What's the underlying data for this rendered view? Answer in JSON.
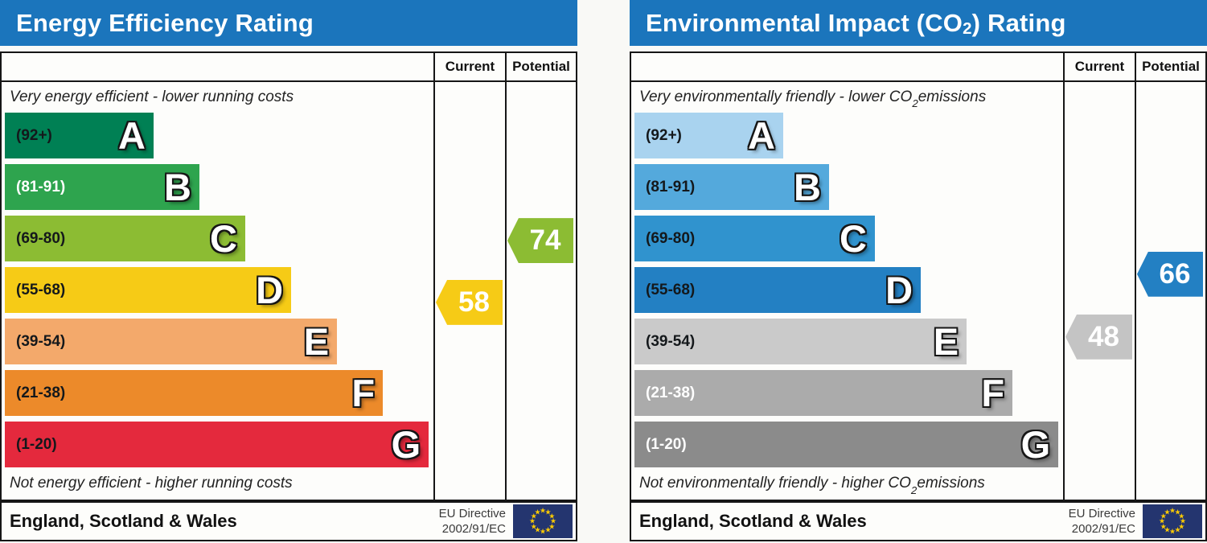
{
  "chart_data": [
    {
      "type": "bar",
      "orientation": "horizontal",
      "title_prefix": "Energy Efficiency Rating",
      "title_sub": "",
      "title_suffix": "",
      "header_color": "#1b75bc",
      "column_headers": {
        "current": "Current",
        "potential": "Potential"
      },
      "top_note_prefix": "Very energy efficient - lower running costs",
      "top_note_sub": "",
      "top_note_suffix": "",
      "bottom_note_prefix": "Not energy efficient - higher running costs",
      "bottom_note_sub": "",
      "bottom_note_suffix": "",
      "categories": [
        "A",
        "B",
        "C",
        "D",
        "E",
        "F",
        "G"
      ],
      "range_labels": [
        "(92+)",
        "(81-91)",
        "(69-80)",
        "(55-68)",
        "(39-54)",
        "(21-38)",
        "(1-20)"
      ],
      "band_bounds": [
        [
          92,
          100
        ],
        [
          81,
          91
        ],
        [
          69,
          80
        ],
        [
          55,
          68
        ],
        [
          39,
          54
        ],
        [
          21,
          38
        ],
        [
          1,
          20
        ]
      ],
      "band_colors": [
        "#008054",
        "#2ea44e",
        "#8cbc33",
        "#f6cb16",
        "#f3a96b",
        "#ec8a2a",
        "#e4293d"
      ],
      "band_label_colors": [
        "#14181b",
        "#ffffff",
        "#14181b",
        "#14181b",
        "#14181b",
        "#14181b",
        "#14181b"
      ],
      "current": 58,
      "current_color": "#f6cb16",
      "potential": 74,
      "potential_color": "#8cbc33",
      "footer_region": "England, Scotland & Wales",
      "eu_directive_line1": "EU Directive",
      "eu_directive_line2": "2002/91/EC",
      "flag_color": "#24356f",
      "star_color": "#ffcc00"
    },
    {
      "type": "bar",
      "orientation": "horizontal",
      "title_prefix": "Environmental Impact (CO",
      "title_sub": "2",
      "title_suffix": ") Rating",
      "header_color": "#1b75bc",
      "column_headers": {
        "current": "Current",
        "potential": "Potential"
      },
      "top_note_prefix": "Very environmentally friendly - lower CO",
      "top_note_sub": "2",
      "top_note_suffix": " emissions",
      "bottom_note_prefix": "Not environmentally friendly - higher CO",
      "bottom_note_sub": "2",
      "bottom_note_suffix": " emissions",
      "categories": [
        "A",
        "B",
        "C",
        "D",
        "E",
        "F",
        "G"
      ],
      "range_labels": [
        "(92+)",
        "(81-91)",
        "(69-80)",
        "(55-68)",
        "(39-54)",
        "(21-38)",
        "(1-20)"
      ],
      "band_bounds": [
        [
          92,
          100
        ],
        [
          81,
          91
        ],
        [
          69,
          80
        ],
        [
          55,
          68
        ],
        [
          39,
          54
        ],
        [
          21,
          38
        ],
        [
          1,
          20
        ]
      ],
      "band_colors": [
        "#a9d3ef",
        "#54a9dc",
        "#3093ce",
        "#2380c3",
        "#cacaca",
        "#ababab",
        "#8b8b8b"
      ],
      "band_label_colors": [
        "#14181b",
        "#14181b",
        "#14181b",
        "#14181b",
        "#14181b",
        "#ffffff",
        "#ffffff"
      ],
      "current": 48,
      "current_color": "#c4c4c4",
      "potential": 66,
      "potential_color": "#2380c3",
      "footer_region": "England, Scotland & Wales",
      "eu_directive_line1": "EU Directive",
      "eu_directive_line2": "2002/91/EC",
      "flag_color": "#24356f",
      "star_color": "#ffcc00"
    }
  ]
}
